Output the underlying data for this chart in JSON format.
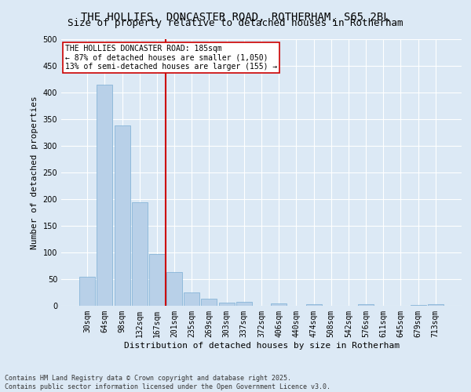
{
  "title_line1": "THE HOLLIES, DONCASTER ROAD, ROTHERHAM, S65 2BL",
  "title_line2": "Size of property relative to detached houses in Rotherham",
  "xlabel": "Distribution of detached houses by size in Rotherham",
  "ylabel": "Number of detached properties",
  "categories": [
    "30sqm",
    "64sqm",
    "98sqm",
    "132sqm",
    "167sqm",
    "201sqm",
    "235sqm",
    "269sqm",
    "303sqm",
    "337sqm",
    "372sqm",
    "406sqm",
    "440sqm",
    "474sqm",
    "508sqm",
    "542sqm",
    "576sqm",
    "611sqm",
    "645sqm",
    "679sqm",
    "713sqm"
  ],
  "values": [
    54,
    414,
    338,
    194,
    97,
    63,
    25,
    13,
    6,
    8,
    0,
    5,
    0,
    3,
    0,
    0,
    3,
    0,
    0,
    2,
    3
  ],
  "bar_color": "#b8d0e8",
  "bar_edge_color": "#7aadd4",
  "vline_color": "#cc0000",
  "annotation_line1": "THE HOLLIES DONCASTER ROAD: 185sqm",
  "annotation_line2": "← 87% of detached houses are smaller (1,050)",
  "annotation_line3": "13% of semi-detached houses are larger (155) →",
  "annotation_box_color": "#ffffff",
  "annotation_box_edge": "#cc0000",
  "ylim": [
    0,
    500
  ],
  "yticks": [
    0,
    50,
    100,
    150,
    200,
    250,
    300,
    350,
    400,
    450,
    500
  ],
  "bg_color": "#dce9f5",
  "plot_bg_color": "#dce9f5",
  "footer_line1": "Contains HM Land Registry data © Crown copyright and database right 2025.",
  "footer_line2": "Contains public sector information licensed under the Open Government Licence v3.0.",
  "title_fontsize": 10,
  "subtitle_fontsize": 9,
  "tick_fontsize": 7,
  "label_fontsize": 8,
  "annotation_fontsize": 7
}
